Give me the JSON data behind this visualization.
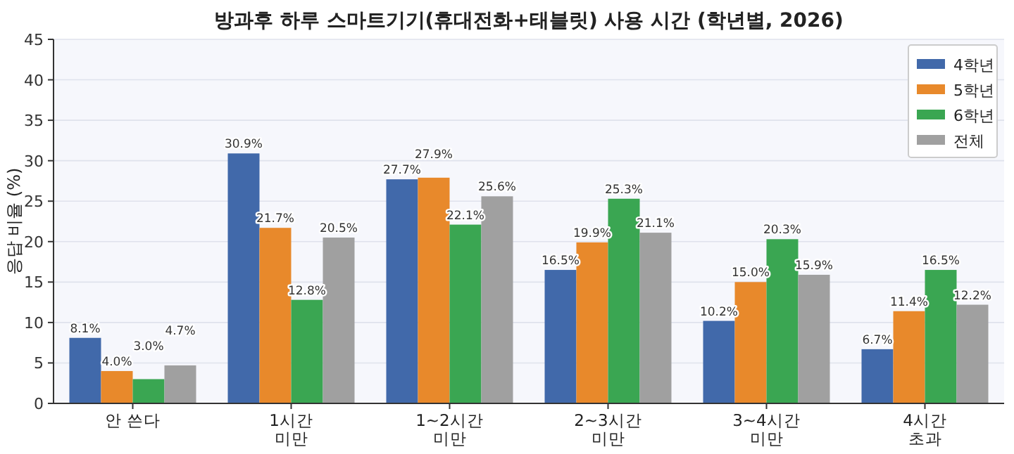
{
  "chart_data": {
    "type": "bar",
    "title": "방과후 하루 스마트기기(휴대전화+태블릿) 사용 시간 (학년별, 2026)",
    "ylabel": "응답 비율 (%)",
    "categories": [
      "안 쓴다",
      "1시간\n미만",
      "1~2시간\n미만",
      "2~3시간\n미만",
      "3~4시간\n미만",
      "4시간\n초과"
    ],
    "series": [
      {
        "name": "4학년",
        "color": "#4169aa",
        "values": [
          8.1,
          30.9,
          27.7,
          16.5,
          10.2,
          6.7
        ],
        "value_labels": [
          "8.1%",
          "30.9%",
          "27.7%",
          "16.5%",
          "10.2%",
          "6.7%"
        ]
      },
      {
        "name": "5학년",
        "color": "#e8892b",
        "values": [
          4.0,
          21.7,
          27.9,
          19.9,
          15.0,
          11.4
        ],
        "value_labels": [
          "4.0%",
          "21.7%",
          "27.9%",
          "19.9%",
          "15.0%",
          "11.4%"
        ]
      },
      {
        "name": "6학년",
        "color": "#3aa652",
        "values": [
          3.0,
          12.8,
          22.1,
          25.3,
          20.3,
          16.5
        ],
        "value_labels": [
          "3.0%",
          "12.8%",
          "22.1%",
          "25.3%",
          "20.3%",
          "16.5%"
        ]
      },
      {
        "name": "전체",
        "color": "#a0a0a0",
        "values": [
          4.7,
          20.5,
          25.6,
          21.1,
          15.9,
          12.2
        ],
        "value_labels": [
          "4.7%",
          "20.5%",
          "25.6%",
          "21.1%",
          "15.9%",
          "12.2%"
        ]
      }
    ],
    "ylim": [
      0,
      45
    ],
    "yticks": [
      0,
      5,
      10,
      15,
      20,
      25,
      30,
      35,
      40,
      45
    ],
    "grid": "y",
    "legend": "top right"
  }
}
